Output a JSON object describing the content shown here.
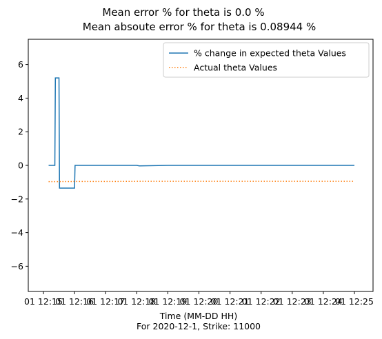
{
  "figure": {
    "title_line1": "Mean error % for theta is 0.0 %",
    "title_line2": "Mean absoute error % for theta is 0.08944 %",
    "xlabel_line1": "Time (MM-DD HH)",
    "xlabel_line2": "For 2020-12-1, Strike: 11000"
  },
  "chart_data": {
    "type": "line",
    "xlabel": "Time (MM-DD HH)",
    "ylabel": "",
    "ylim": [
      -7.5,
      7.5
    ],
    "xlim": [
      "01 12:15",
      "01 12:25"
    ],
    "grid": false,
    "legend_position": "top-right",
    "x_tick_labels": [
      "01 12:15",
      "01 12:16",
      "01 12:17",
      "01 12:18",
      "01 12:19",
      "01 12:20",
      "01 12:21",
      "01 12:22",
      "01 12:23",
      "01 12:24",
      "01 12:25"
    ],
    "y_ticks": [
      -6,
      -4,
      -2,
      0,
      2,
      4,
      6
    ],
    "series": [
      {
        "name": "% change in expected theta Values",
        "style": "solid",
        "color": "#1f77b4",
        "x": [
          "01 12:15:10",
          "01 12:15:22",
          "01 12:15:23",
          "01 12:15:30",
          "01 12:15:31",
          "01 12:15:35",
          "01 12:16:00",
          "01 12:16:01",
          "01 12:18:00",
          "01 12:18:05",
          "01 12:19:00",
          "01 12:20:00",
          "01 12:21:00",
          "01 12:22:00",
          "01 12:23:00",
          "01 12:24:00",
          "01 12:25:00"
        ],
        "y": [
          0.0,
          0.0,
          5.2,
          5.2,
          -1.35,
          -1.35,
          -1.35,
          0.0,
          0.0,
          -0.03,
          0.0,
          0.0,
          0.0,
          0.0,
          0.0,
          0.0,
          0.0
        ]
      },
      {
        "name": "Actual theta Values",
        "style": "dotted",
        "color": "#ff7f0e",
        "x": [
          "01 12:15:10",
          "01 12:16:00",
          "01 12:17:00",
          "01 12:18:00",
          "01 12:19:00",
          "01 12:20:00",
          "01 12:21:00",
          "01 12:22:00",
          "01 12:23:00",
          "01 12:24:00",
          "01 12:25:00"
        ],
        "y": [
          -0.97,
          -0.96,
          -0.96,
          -0.95,
          -0.95,
          -0.95,
          -0.95,
          -0.95,
          -0.95,
          -0.95,
          -0.95
        ]
      }
    ]
  }
}
